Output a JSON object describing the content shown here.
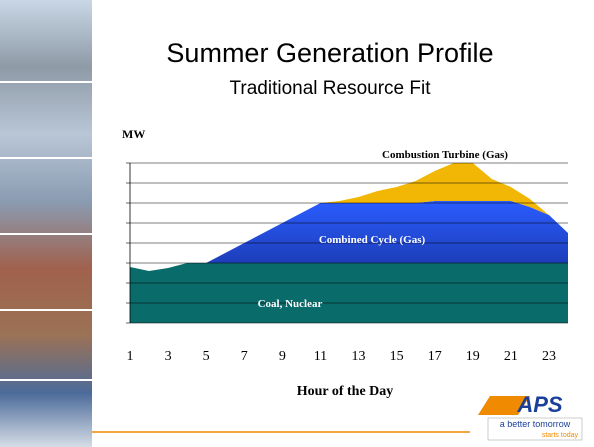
{
  "slide": {
    "title": "Summer Generation Profile",
    "subtitle": "Traditional Resource Fit",
    "logo": {
      "brand": "APS",
      "tagline": "a better tomorrow",
      "tagline2": "starts today"
    }
  },
  "chart_data": {
    "type": "stacked-area",
    "ylabel": "MW",
    "xlabel": "Hour of the Day",
    "x": [
      1,
      2,
      3,
      4,
      5,
      6,
      7,
      8,
      9,
      10,
      11,
      12,
      13,
      14,
      15,
      16,
      17,
      18,
      19,
      20,
      21,
      22,
      23,
      24
    ],
    "xlim": [
      1,
      24
    ],
    "xticks": [
      1,
      3,
      5,
      7,
      9,
      11,
      13,
      15,
      17,
      19,
      21,
      23
    ],
    "ylim": [
      0,
      8
    ],
    "yticks": [
      0,
      1,
      2,
      3,
      4,
      5,
      6,
      7,
      8
    ],
    "grid": true,
    "series": [
      {
        "name": "Coal, Nuclear",
        "color": "#0a6b6b",
        "values": [
          2.8,
          2.6,
          2.75,
          3,
          3,
          3,
          3,
          3,
          3,
          3,
          3,
          3,
          3,
          3,
          3,
          3,
          3,
          3,
          3,
          3,
          3,
          3,
          3,
          3
        ]
      },
      {
        "name": "Combined Cycle (Gas)",
        "color": "#2850e0",
        "values": [
          0,
          0,
          0,
          0,
          0,
          0.5,
          1,
          1.5,
          2,
          2.5,
          3,
          3,
          3,
          3,
          3,
          3,
          3.1,
          3.1,
          3.1,
          3.1,
          3.1,
          2.8,
          2.4,
          1.5
        ]
      },
      {
        "name": "Combustion Turbine (Gas)",
        "color": "#f2b705",
        "values": [
          0,
          0,
          0,
          0,
          0,
          0,
          0,
          0,
          0,
          0,
          0,
          0.1,
          0.3,
          0.6,
          0.8,
          1.1,
          1.5,
          1.9,
          1.9,
          1.1,
          0.7,
          0.4,
          0,
          0
        ]
      }
    ]
  }
}
